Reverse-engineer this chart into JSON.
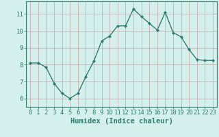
{
  "x": [
    0,
    1,
    2,
    3,
    4,
    5,
    6,
    7,
    8,
    9,
    10,
    11,
    12,
    13,
    14,
    15,
    16,
    17,
    18,
    19,
    20,
    21,
    22,
    23
  ],
  "y": [
    8.1,
    8.1,
    7.85,
    6.9,
    6.3,
    6.0,
    6.3,
    7.3,
    8.2,
    9.4,
    9.7,
    10.3,
    10.3,
    11.3,
    10.85,
    10.45,
    10.05,
    11.1,
    9.9,
    9.65,
    8.9,
    8.3,
    8.25,
    8.25
  ],
  "line_color": "#2e7d6e",
  "marker": "D",
  "marker_size": 2.0,
  "line_width": 1.0,
  "bg_color": "#d4f0ec",
  "grid_color_v": "#c8a0a0",
  "grid_color_h": "#c8a0a0",
  "xlabel": "Humidex (Indice chaleur)",
  "xlim": [
    -0.5,
    23.5
  ],
  "ylim": [
    5.5,
    11.75
  ],
  "yticks": [
    6,
    7,
    8,
    9,
    10,
    11
  ],
  "xticks": [
    0,
    1,
    2,
    3,
    4,
    5,
    6,
    7,
    8,
    9,
    10,
    11,
    12,
    13,
    14,
    15,
    16,
    17,
    18,
    19,
    20,
    21,
    22,
    23
  ],
  "tick_color": "#2e7d6e",
  "xlabel_fontsize": 7.5,
  "ylabel_fontsize": 7,
  "tick_fontsize": 6.5,
  "spine_color": "#2e7d6e"
}
